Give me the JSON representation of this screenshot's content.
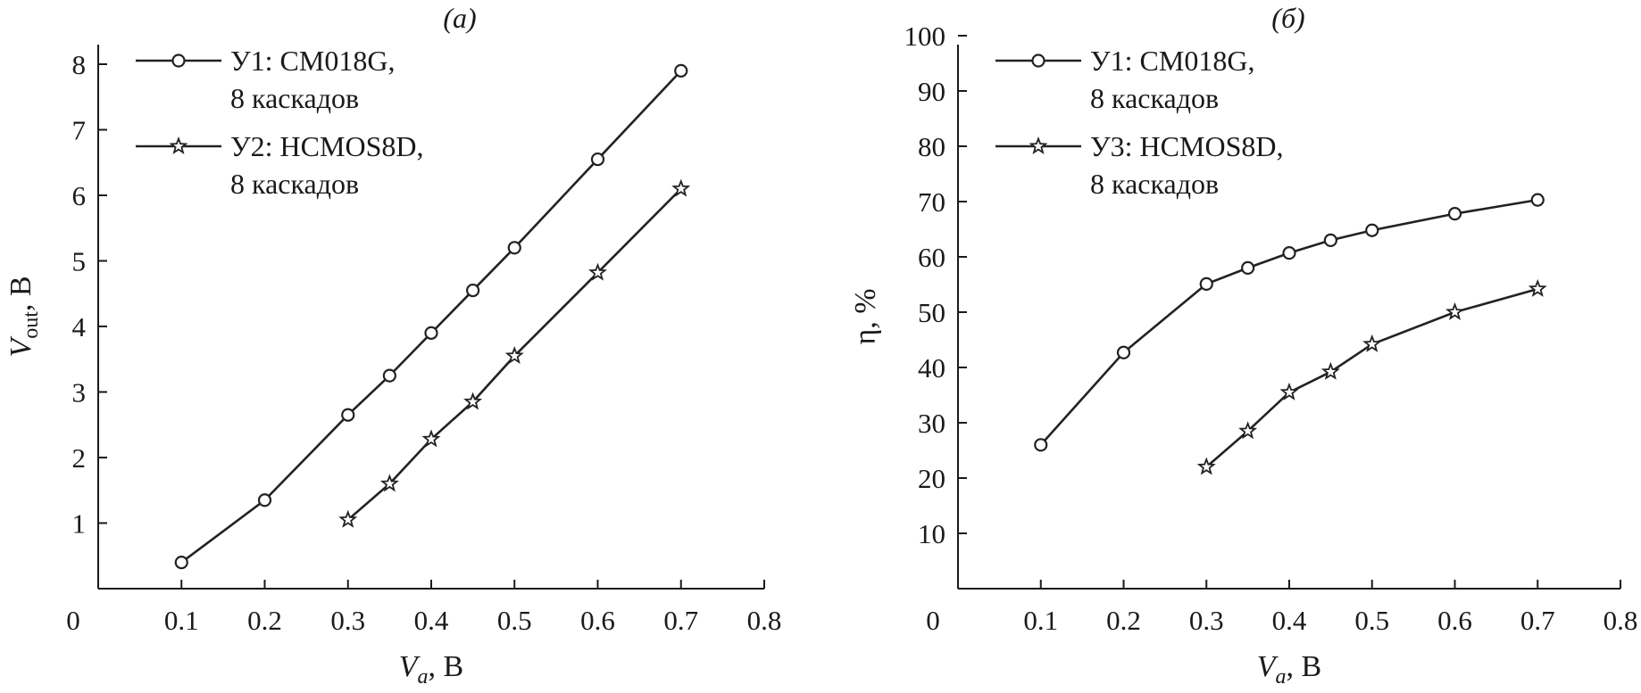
{
  "chart_data": [
    {
      "type": "line",
      "panel_label": "(a)",
      "xlabel_main": "V",
      "xlabel_sub": "a",
      "xlabel_unit": ", В",
      "ylabel_main": "V",
      "ylabel_sub": "out",
      "ylabel_unit": ", В",
      "xlim": [
        0,
        0.8
      ],
      "ylim": [
        0,
        8.5
      ],
      "x_ticks": [
        "0",
        "0.1",
        "0.2",
        "0.3",
        "0.4",
        "0.5",
        "0.6",
        "0.7",
        "0.8"
      ],
      "y_ticks": [
        "1",
        "2",
        "3",
        "4",
        "5",
        "6",
        "7",
        "8"
      ],
      "legend_position": "top-left",
      "series": [
        {
          "name": "У1: CM018G,",
          "name_line2": "8 каскадов",
          "marker": "circle",
          "x": [
            0.1,
            0.2,
            0.3,
            0.35,
            0.4,
            0.45,
            0.5,
            0.6,
            0.7
          ],
          "y": [
            0.4,
            1.35,
            2.65,
            3.25,
            3.9,
            4.55,
            5.2,
            6.55,
            7.9
          ]
        },
        {
          "name": "У2: HCMOS8D,",
          "name_line2": "8 каскадов",
          "marker": "star",
          "x": [
            0.3,
            0.35,
            0.4,
            0.45,
            0.5,
            0.6,
            0.7
          ],
          "y": [
            1.05,
            1.6,
            2.28,
            2.85,
            3.55,
            4.82,
            6.1
          ]
        }
      ]
    },
    {
      "type": "line",
      "panel_label": "(б)",
      "xlabel_main": "V",
      "xlabel_sub": "a",
      "xlabel_unit": ", В",
      "ylabel": "η, %",
      "xlim": [
        0,
        0.8
      ],
      "ylim": [
        0,
        100
      ],
      "x_ticks": [
        "0",
        "0.1",
        "0.2",
        "0.3",
        "0.4",
        "0.5",
        "0.6",
        "0.7",
        "0.8"
      ],
      "y_ticks": [
        "10",
        "20",
        "30",
        "40",
        "50",
        "60",
        "70",
        "80",
        "90",
        "100"
      ],
      "legend_position": "top-left",
      "series": [
        {
          "name": "У1: CM018G,",
          "name_line2": "8 каскадов",
          "marker": "circle",
          "x": [
            0.1,
            0.2,
            0.3,
            0.35,
            0.4,
            0.45,
            0.5,
            0.6,
            0.7
          ],
          "y": [
            26,
            42.7,
            55.1,
            58,
            60.7,
            63,
            64.8,
            67.8,
            70.3
          ]
        },
        {
          "name": "У3: HCMOS8D,",
          "name_line2": "8 каскадов",
          "marker": "star",
          "x": [
            0.3,
            0.35,
            0.4,
            0.45,
            0.5,
            0.6,
            0.7
          ],
          "y": [
            22,
            28.5,
            35.5,
            39.2,
            44.2,
            50,
            54.2
          ]
        }
      ]
    }
  ]
}
